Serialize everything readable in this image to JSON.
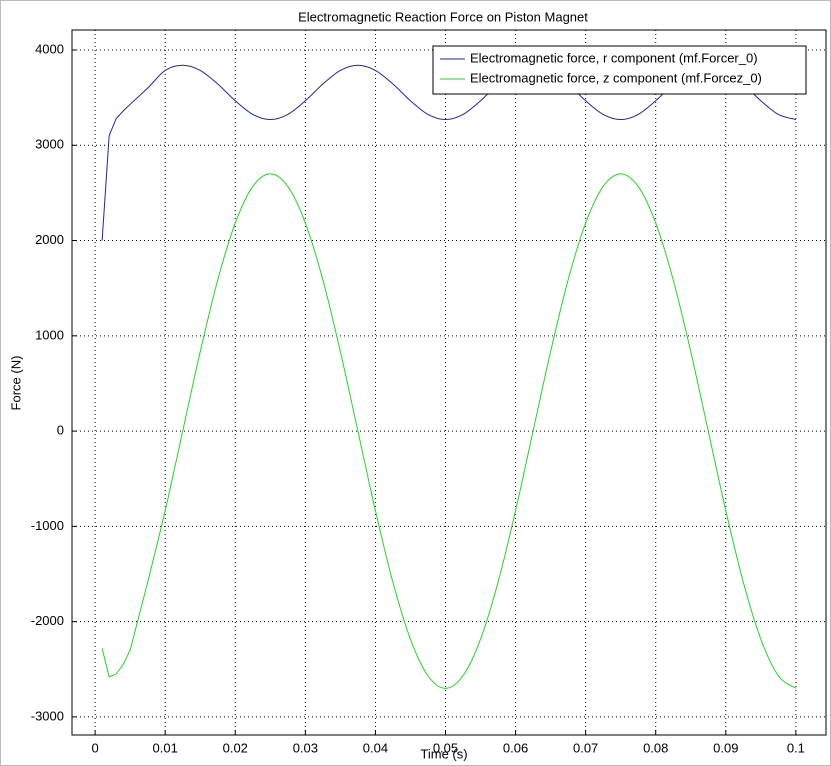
{
  "chart_data": {
    "type": "line",
    "title": "Electromagnetic Reaction Force on Piston Magnet",
    "xlabel": "Time (s)",
    "ylabel": "Force (N)",
    "x": [
      0.001,
      0.002,
      0.003,
      0.004,
      0.005,
      0.0075,
      0.01,
      0.0125,
      0.015,
      0.0175,
      0.02,
      0.0225,
      0.025,
      0.0275,
      0.03,
      0.0325,
      0.035,
      0.0375,
      0.04,
      0.0425,
      0.045,
      0.0475,
      0.05,
      0.0525,
      0.055,
      0.0575,
      0.06,
      0.0625,
      0.065,
      0.0675,
      0.07,
      0.0725,
      0.075,
      0.0775,
      0.08,
      0.0825,
      0.085,
      0.0875,
      0.09,
      0.0925,
      0.095,
      0.0975,
      0.1
    ],
    "series": [
      {
        "name": "Electromagnetic force, r component (mf.Forcer_0)",
        "color": "#1f2a9c",
        "values": [
          2000,
          3100,
          3280,
          3360,
          3430,
          3600,
          3786,
          3840,
          3786,
          3643,
          3467,
          3324,
          3270,
          3324,
          3467,
          3643,
          3786,
          3840,
          3786,
          3643,
          3467,
          3324,
          3270,
          3324,
          3467,
          3643,
          3786,
          3840,
          3786,
          3643,
          3467,
          3324,
          3270,
          3324,
          3467,
          3643,
          3786,
          3840,
          3786,
          3643,
          3467,
          3324,
          3270
        ]
      },
      {
        "name": "Electromagnetic force, z component (mf.Forcez_0)",
        "color": "#22d622",
        "values": [
          -2280,
          -2580,
          -2550,
          -2450,
          -2300,
          -1587,
          -834,
          0,
          834,
          1587,
          2184,
          2568,
          2700,
          2568,
          2184,
          1587,
          834,
          0,
          -834,
          -1587,
          -2184,
          -2568,
          -2700,
          -2568,
          -2184,
          -1587,
          -834,
          0,
          834,
          1587,
          2184,
          2568,
          2700,
          2568,
          2184,
          1587,
          834,
          0,
          -834,
          -1587,
          -2184,
          -2568,
          -2700
        ]
      }
    ],
    "xlim": [
      -0.0033,
      0.1043
    ],
    "xticks": [
      0,
      0.01,
      0.02,
      0.03,
      0.04,
      0.05,
      0.06,
      0.07,
      0.08,
      0.09,
      0.1
    ],
    "ylim": [
      -3190,
      4210
    ],
    "yticks": [
      -3000,
      -2000,
      -1000,
      0,
      1000,
      2000,
      3000,
      4000
    ],
    "grid": true,
    "legend": "upper right"
  }
}
